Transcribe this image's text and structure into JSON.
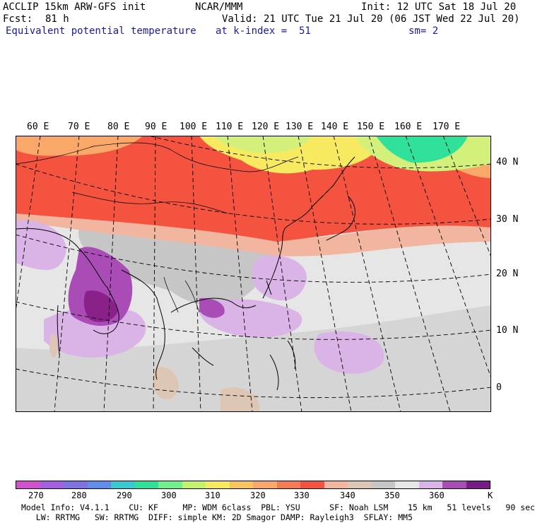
{
  "header": {
    "model": "ACCLIP 15km ARW-GFS init",
    "org": "NCAR/MMM",
    "init": "Init: 12 UTC Sat 18 Jul 20",
    "fcst_label": "Fcst:",
    "fcst_value": "81 h",
    "valid": "Valid: 21 UTC Tue 21 Jul 20 (06 JST Wed 22 Jul 20)",
    "field": "Equivalent potential temperature",
    "level": "at k-index =  51",
    "smoothing": "sm= 2"
  },
  "map": {
    "lon_labels": [
      "60 E",
      "70 E",
      "80 E",
      "90 E",
      "100 E",
      "110 E",
      "120 E",
      "130 E",
      "140 E",
      "150 E",
      "160 E",
      "170 E"
    ],
    "lat_labels": [
      "40 N",
      "30 N",
      "20 N",
      "10 N",
      "0"
    ],
    "colors": {
      "red": "#f4533f",
      "orange": "#f9a869",
      "salmon": "#f2b5a0",
      "yellow": "#f8ea60",
      "lime": "#d2f07a",
      "green": "#2fe199",
      "tan": "#ddc6b4",
      "gray": "#c6c6c6",
      "lightgray": "#e6e6e6",
      "lightpurple": "#dab4e6",
      "purple": "#a94cb6",
      "darkpurple": "#8a208a"
    }
  },
  "colorbar": {
    "colors": [
      "#d24fd0",
      "#a45fe0",
      "#7e72e4",
      "#5f8eec",
      "#39c9d0",
      "#2fe199",
      "#6ef08a",
      "#c4f36a",
      "#f8ea60",
      "#f9c45c",
      "#f9a869",
      "#f47b52",
      "#f4533f",
      "#f2b5a0",
      "#ddc6b4",
      "#c6c6c6",
      "#e6e6e6",
      "#dab4e6",
      "#a94cb6",
      "#7a1a8a"
    ],
    "ticks": [
      "270",
      "280",
      "290",
      "300",
      "310",
      "320",
      "330",
      "340",
      "350",
      "360"
    ],
    "unit": "K"
  },
  "footer": {
    "line1": "Model Info: V4.1.1    CU: KF     MP: WDM 6class  PBL: YSU      SF: Noah LSM    15 km   51 levels   90 sec",
    "line2": "   LW: RRTMG   SW: RRTMG  DIFF: simple KM: 2D Smagor DAMP: Rayleigh3  SFLAY: MM5"
  }
}
